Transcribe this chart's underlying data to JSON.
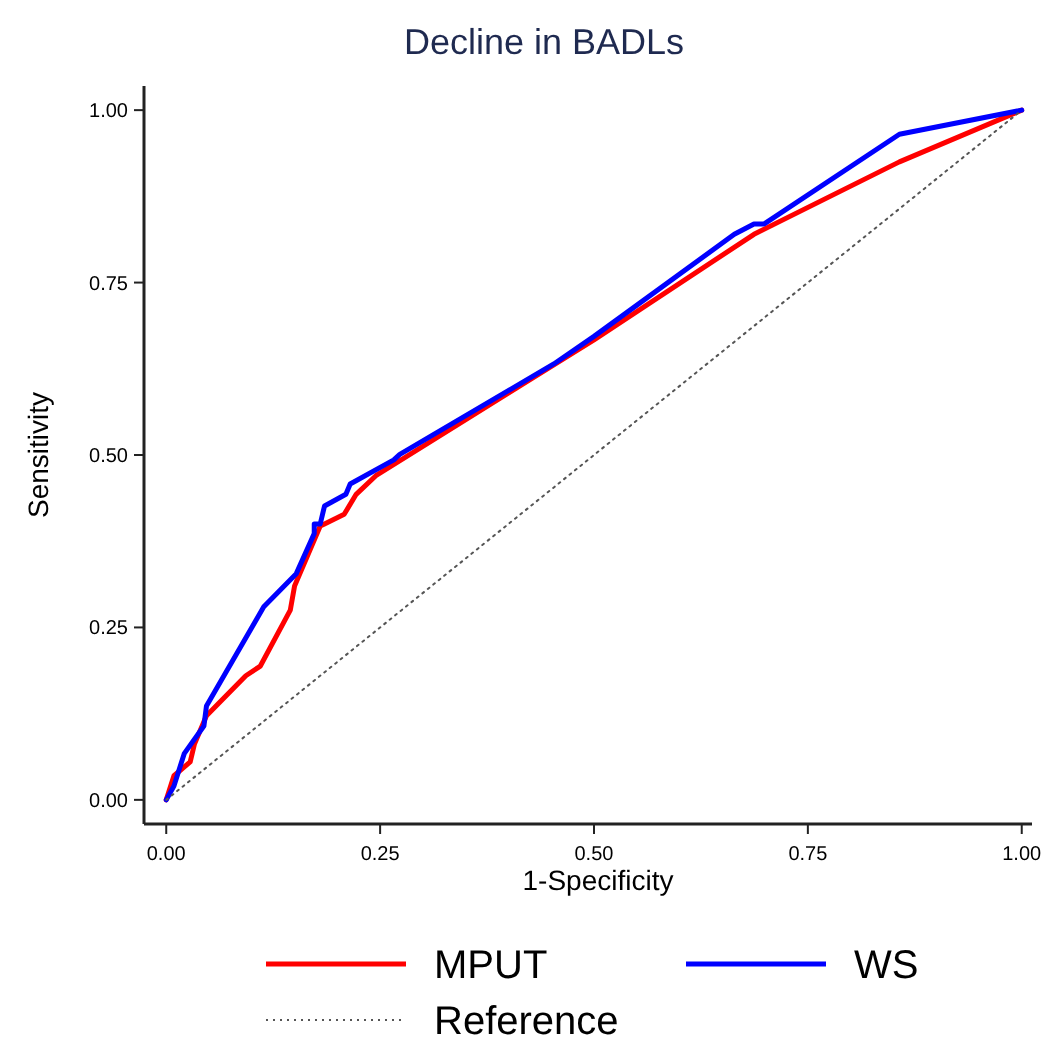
{
  "chart_data": {
    "type": "line",
    "title": "Decline in BADLs",
    "xlabel": "1-Specificity",
    "ylabel": "Sensitivity",
    "xlim": [
      -0.026,
      1.012
    ],
    "ylim": [
      -0.035,
      1.035
    ],
    "xticks": [
      {
        "value": 0,
        "label": "0.00"
      },
      {
        "value": 0.25,
        "label": "0.25"
      },
      {
        "value": 0.5,
        "label": "0.50"
      },
      {
        "value": 0.75,
        "label": "0.75"
      },
      {
        "value": 1,
        "label": "1.00"
      }
    ],
    "yticks": [
      {
        "value": 0,
        "label": "0.00"
      },
      {
        "value": 0.25,
        "label": "0.25"
      },
      {
        "value": 0.5,
        "label": "0.50"
      },
      {
        "value": 0.75,
        "label": "0.75"
      },
      {
        "value": 1,
        "label": "1.00"
      }
    ],
    "grid": false,
    "legend": "bottom",
    "marker": "none",
    "series": [
      {
        "name": "MPUT",
        "color": "#ff0000",
        "line_style": "solid",
        "x": [
          0,
          0.009,
          0.028,
          0.033,
          0.047,
          0.093,
          0.11,
          0.145,
          0.15,
          0.18,
          0.185,
          0.208,
          0.222,
          0.245,
          0.5,
          0.687,
          0.857,
          1
        ],
        "values": [
          0,
          0.035,
          0.055,
          0.081,
          0.122,
          0.18,
          0.194,
          0.275,
          0.31,
          0.397,
          0.4,
          0.414,
          0.443,
          0.47,
          0.667,
          0.82,
          0.925,
          1
        ]
      },
      {
        "name": "WS",
        "color": "#0000ff",
        "line_style": "solid",
        "x": [
          0,
          0.009,
          0.021,
          0.044,
          0.047,
          0.114,
          0.152,
          0.173,
          0.173,
          0.18,
          0.185,
          0.21,
          0.215,
          0.266,
          0.273,
          0.453,
          0.5,
          0.664,
          0.687,
          0.699,
          0.857,
          1
        ],
        "values": [
          0,
          0.02,
          0.067,
          0.107,
          0.136,
          0.28,
          0.328,
          0.386,
          0.4,
          0.4,
          0.426,
          0.443,
          0.458,
          0.493,
          0.501,
          0.632,
          0.672,
          0.82,
          0.835,
          0.835,
          0.965,
          1
        ]
      },
      {
        "name": "Reference",
        "color": "#555555",
        "line_style": "dotted",
        "x": [
          0,
          1
        ],
        "values": [
          0,
          1
        ]
      }
    ]
  }
}
